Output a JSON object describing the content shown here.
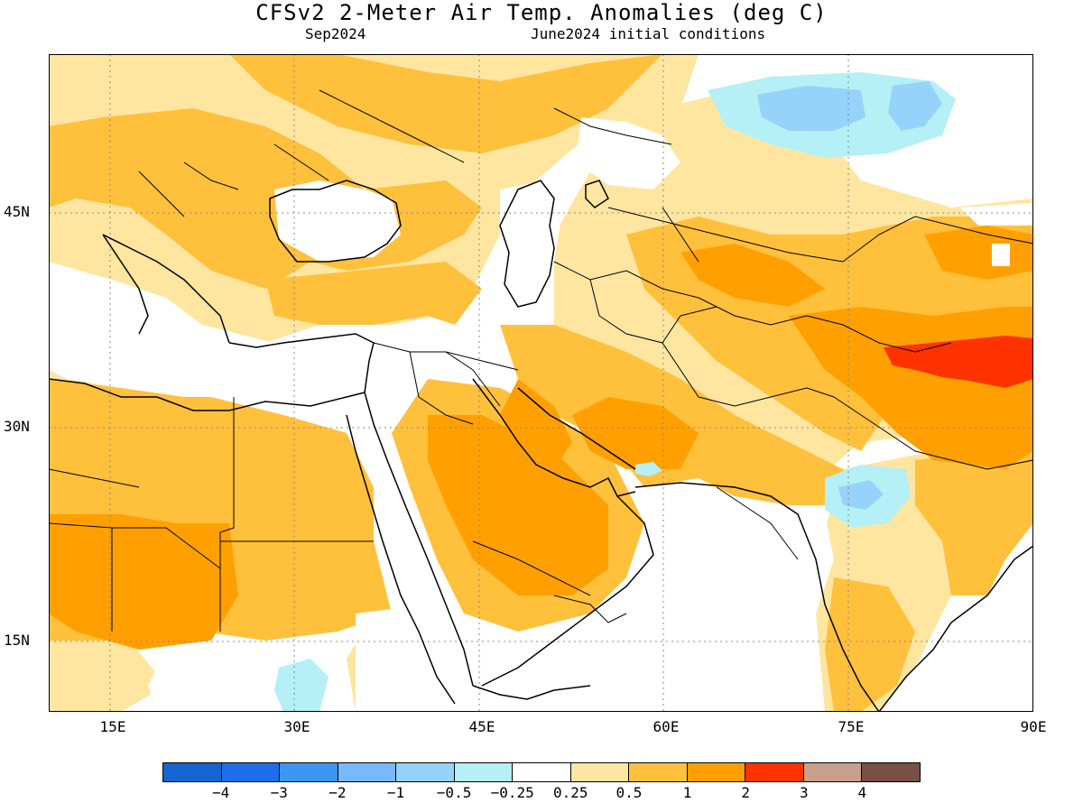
{
  "header": {
    "title": "CFSv2 2-Meter Air Temp. Anomalies (deg C)",
    "subtitle_left": "Sep2024",
    "subtitle_right": "June2024 initial conditions"
  },
  "map": {
    "lat_labels": [
      "45N",
      "30N",
      "15N"
    ],
    "lon_labels": [
      "15E",
      "30E",
      "45E",
      "60E",
      "75E",
      "90E"
    ],
    "region": "Middle East / Central Asia / North Africa",
    "colors": {
      "neg_0.5_0.25": "#b4f0f5",
      "neg_1_0.5": "#96d2fa",
      "pos_0.25_0.5": "#ffe6a0",
      "pos_0.5_1": "#ffc03c",
      "pos_1_2": "#ffa000",
      "pos_2_3": "#ff3200",
      "neutral": "#ffffff"
    }
  },
  "colorbar": {
    "colors": [
      "#1464d2",
      "#1e6eeb",
      "#3c96f5",
      "#78b9fa",
      "#96d2fa",
      "#b4f0f5",
      "#ffffff",
      "#ffe6a0",
      "#ffc03c",
      "#ffa000",
      "#ff3200",
      "#c8a08c",
      "#785046"
    ],
    "labels": [
      "−4",
      "−3",
      "−2",
      "−1",
      "−0.5",
      "−0.25",
      "0.25",
      "0.5",
      "1",
      "2",
      "3",
      "4"
    ]
  }
}
